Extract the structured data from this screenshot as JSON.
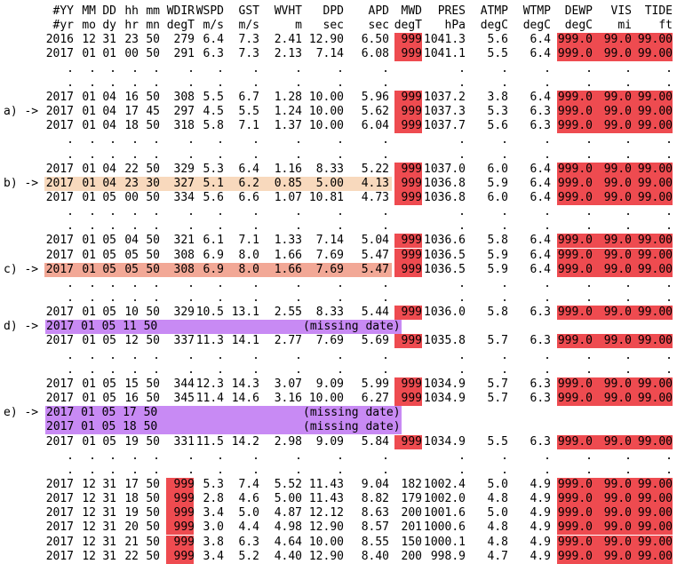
{
  "columns": [
    "YY",
    "MM",
    "DD",
    "hh",
    "mm",
    "WDIR",
    "WSPD",
    "GST",
    "WVHT",
    "DPD",
    "APD",
    "MWD",
    "PRES",
    "ATMP",
    "WTMP",
    "DEWP",
    "VIS",
    "TIDE"
  ],
  "header": [
    [
      "#YY",
      "MM",
      "DD",
      "hh",
      "mm",
      "WDIR",
      "WSPD",
      "GST",
      "WVHT",
      "DPD",
      "APD",
      "MWD",
      "PRES",
      "ATMP",
      "WTMP",
      "DEWP",
      "VIS",
      "TIDE"
    ],
    [
      "#yr",
      "mo",
      "dy",
      "hr",
      "mn",
      "degT",
      "m/s",
      "m/s",
      "m",
      "sec",
      "sec",
      "degT",
      "hPa",
      "degC",
      "degC",
      "degC",
      "mi",
      "ft"
    ]
  ],
  "colors": {
    "missing_value": "#ee4b50",
    "highlight_b": "#f8d9bd",
    "highlight_c": "#f2a896",
    "missing_date": "#c88af4"
  },
  "lines": [
    {
      "kind": "data",
      "cells": [
        "2016",
        "12",
        "31",
        "23",
        "50",
        "279",
        "6.4",
        "7.3",
        "2.41",
        "12.90",
        "6.50",
        "999",
        "1041.3",
        "5.6",
        "6.4",
        "999.0",
        "99.0",
        "99.00"
      ],
      "red": [
        11,
        15,
        16,
        17
      ]
    },
    {
      "kind": "data",
      "cells": [
        "2017",
        "01",
        "01",
        "00",
        "50",
        "291",
        "6.3",
        "7.3",
        "2.13",
        "7.14",
        "6.08",
        "999",
        "1041.1",
        "5.5",
        "6.4",
        "999.0",
        "99.0",
        "99.00"
      ],
      "red": [
        11,
        15,
        16,
        17
      ]
    },
    {
      "kind": "dots",
      "dot": "."
    },
    {
      "kind": "dots",
      "dot": "."
    },
    {
      "kind": "data",
      "cells": [
        "2017",
        "01",
        "04",
        "16",
        "50",
        "308",
        "5.5",
        "6.7",
        "1.28",
        "10.00",
        "5.96",
        "999",
        "1037.2",
        "3.8",
        "6.4",
        "999.0",
        "99.0",
        "99.00"
      ],
      "red": [
        11,
        15,
        16,
        17
      ]
    },
    {
      "kind": "data",
      "label": "a) ->",
      "cells": [
        "2017",
        "01",
        "04",
        "17",
        "45",
        "297",
        "4.5",
        "5.5",
        "1.24",
        "10.00",
        "5.62",
        "999",
        "1037.3",
        "5.3",
        "6.3",
        "999.0",
        "99.0",
        "99.00"
      ],
      "red": [
        11,
        15,
        16,
        17
      ]
    },
    {
      "kind": "data",
      "cells": [
        "2017",
        "01",
        "04",
        "18",
        "50",
        "318",
        "5.8",
        "7.1",
        "1.37",
        "10.00",
        "6.04",
        "999",
        "1037.7",
        "5.6",
        "6.3",
        "999.0",
        "99.0",
        "99.00"
      ],
      "red": [
        11,
        15,
        16,
        17
      ]
    },
    {
      "kind": "dots",
      "dot": "."
    },
    {
      "kind": "dots",
      "dot": "."
    },
    {
      "kind": "data",
      "cells": [
        "2017",
        "01",
        "04",
        "22",
        "50",
        "329",
        "5.3",
        "6.4",
        "1.16",
        "8.33",
        "5.22",
        "999",
        "1037.0",
        "6.0",
        "6.4",
        "999.0",
        "99.0",
        "99.00"
      ],
      "red": [
        11,
        15,
        16,
        17
      ]
    },
    {
      "kind": "data",
      "label": "b) ->",
      "highlight": "peach",
      "cells": [
        "2017",
        "01",
        "04",
        "23",
        "30",
        "327",
        "5.1",
        "6.2",
        "0.85",
        "5.00",
        "4.13",
        "999",
        "1036.8",
        "5.9",
        "6.4",
        "999.0",
        "99.0",
        "99.00"
      ],
      "red": [
        11,
        15,
        16,
        17
      ]
    },
    {
      "kind": "data",
      "cells": [
        "2017",
        "01",
        "05",
        "00",
        "50",
        "334",
        "5.6",
        "6.6",
        "1.07",
        "10.81",
        "4.73",
        "999",
        "1036.8",
        "6.0",
        "6.4",
        "999.0",
        "99.0",
        "99.00"
      ],
      "red": [
        11,
        15,
        16,
        17
      ]
    },
    {
      "kind": "dots",
      "dot": "."
    },
    {
      "kind": "dots",
      "dot": "."
    },
    {
      "kind": "data",
      "cells": [
        "2017",
        "01",
        "05",
        "04",
        "50",
        "321",
        "6.1",
        "7.1",
        "1.33",
        "7.14",
        "5.04",
        "999",
        "1036.6",
        "5.8",
        "6.4",
        "999.0",
        "99.0",
        "99.00"
      ],
      "red": [
        11,
        15,
        16,
        17
      ]
    },
    {
      "kind": "data",
      "cells": [
        "2017",
        "01",
        "05",
        "05",
        "50",
        "308",
        "6.9",
        "8.0",
        "1.66",
        "7.69",
        "5.47",
        "999",
        "1036.5",
        "5.9",
        "6.4",
        "999.0",
        "99.0",
        "99.00"
      ],
      "red": [
        11,
        15,
        16,
        17
      ]
    },
    {
      "kind": "data",
      "label": "c) ->",
      "highlight": "salmon",
      "cells": [
        "2017",
        "01",
        "05",
        "05",
        "50",
        "308",
        "6.9",
        "8.0",
        "1.66",
        "7.69",
        "5.47",
        "999",
        "1036.5",
        "5.9",
        "6.4",
        "999.0",
        "99.0",
        "99.00"
      ],
      "red": [
        11,
        15,
        16,
        17
      ]
    },
    {
      "kind": "dots",
      "dot": "."
    },
    {
      "kind": "dots",
      "dot": "."
    },
    {
      "kind": "data",
      "cells": [
        "2017",
        "01",
        "05",
        "10",
        "50",
        "329",
        "10.5",
        "13.1",
        "2.55",
        "8.33",
        "5.44",
        "999",
        "1036.0",
        "5.8",
        "6.3",
        "999.0",
        "99.0",
        "99.00"
      ],
      "red": [
        11,
        15,
        16,
        17
      ]
    },
    {
      "kind": "missing",
      "label": "d) ->",
      "date": "2017 01 05 11 50",
      "note": "(missing date)"
    },
    {
      "kind": "data",
      "cells": [
        "2017",
        "01",
        "05",
        "12",
        "50",
        "337",
        "11.3",
        "14.1",
        "2.77",
        "7.69",
        "5.69",
        "999",
        "1035.8",
        "5.7",
        "6.3",
        "999.0",
        "99.0",
        "99.00"
      ],
      "red": [
        11,
        15,
        16,
        17
      ]
    },
    {
      "kind": "dots",
      "dot": "."
    },
    {
      "kind": "dots",
      "dot": "."
    },
    {
      "kind": "data",
      "cells": [
        "2017",
        "01",
        "05",
        "15",
        "50",
        "344",
        "12.3",
        "14.3",
        "3.07",
        "9.09",
        "5.99",
        "999",
        "1034.9",
        "5.7",
        "6.3",
        "999.0",
        "99.0",
        "99.00"
      ],
      "red": [
        11,
        15,
        16,
        17
      ]
    },
    {
      "kind": "data",
      "cells": [
        "2017",
        "01",
        "05",
        "16",
        "50",
        "345",
        "11.4",
        "14.6",
        "3.16",
        "10.00",
        "6.27",
        "999",
        "1034.9",
        "5.7",
        "6.3",
        "999.0",
        "99.0",
        "99.00"
      ],
      "red": [
        11,
        15,
        16,
        17
      ]
    },
    {
      "kind": "missing",
      "label": "e) ->",
      "date": "2017 01 05 17 50",
      "note": "(missing date)"
    },
    {
      "kind": "missing",
      "date": "2017 01 05 18 50",
      "note": "(missing date)"
    },
    {
      "kind": "data",
      "cells": [
        "2017",
        "01",
        "05",
        "19",
        "50",
        "331",
        "11.5",
        "14.2",
        "2.98",
        "9.09",
        "5.84",
        "999",
        "1034.9",
        "5.5",
        "6.3",
        "999.0",
        "99.0",
        "99.00"
      ],
      "red": [
        11,
        15,
        16,
        17
      ]
    },
    {
      "kind": "dots",
      "dot": "."
    },
    {
      "kind": "dots",
      "dot": "."
    },
    {
      "kind": "data",
      "cells": [
        "2017",
        "12",
        "31",
        "17",
        "50",
        "999",
        "5.3",
        "7.4",
        "5.52",
        "11.43",
        "9.04",
        "182",
        "1002.4",
        "5.0",
        "4.9",
        "999.0",
        "99.0",
        "99.00"
      ],
      "red": [
        5,
        15,
        16,
        17
      ]
    },
    {
      "kind": "data",
      "cells": [
        "2017",
        "12",
        "31",
        "18",
        "50",
        "999",
        "2.8",
        "4.6",
        "5.00",
        "11.43",
        "8.82",
        "179",
        "1002.0",
        "4.8",
        "4.9",
        "999.0",
        "99.0",
        "99.00"
      ],
      "red": [
        5,
        15,
        16,
        17
      ]
    },
    {
      "kind": "data",
      "cells": [
        "2017",
        "12",
        "31",
        "19",
        "50",
        "999",
        "3.4",
        "5.0",
        "4.87",
        "12.12",
        "8.63",
        "200",
        "1001.6",
        "5.0",
        "4.9",
        "999.0",
        "99.0",
        "99.00"
      ],
      "red": [
        5,
        15,
        16,
        17
      ]
    },
    {
      "kind": "data",
      "cells": [
        "2017",
        "12",
        "31",
        "20",
        "50",
        "999",
        "3.0",
        "4.4",
        "4.98",
        "12.90",
        "8.57",
        "201",
        "1000.6",
        "4.8",
        "4.9",
        "999.0",
        "99.0",
        "99.00"
      ],
      "red": [
        5,
        15,
        16,
        17
      ]
    },
    {
      "kind": "data",
      "cells": [
        "2017",
        "12",
        "31",
        "21",
        "50",
        "999",
        "3.8",
        "6.3",
        "4.64",
        "10.00",
        "8.55",
        "150",
        "1000.1",
        "4.8",
        "4.9",
        "999.0",
        "99.0",
        "99.00"
      ],
      "red": [
        5,
        15,
        16,
        17
      ]
    },
    {
      "kind": "data",
      "cells": [
        "2017",
        "12",
        "31",
        "22",
        "50",
        "999",
        "3.4",
        "5.2",
        "4.40",
        "12.90",
        "8.40",
        "200",
        "998.9",
        "4.7",
        "4.9",
        "999.0",
        "99.0",
        "99.00"
      ],
      "red": [
        5,
        15,
        16,
        17
      ]
    }
  ]
}
